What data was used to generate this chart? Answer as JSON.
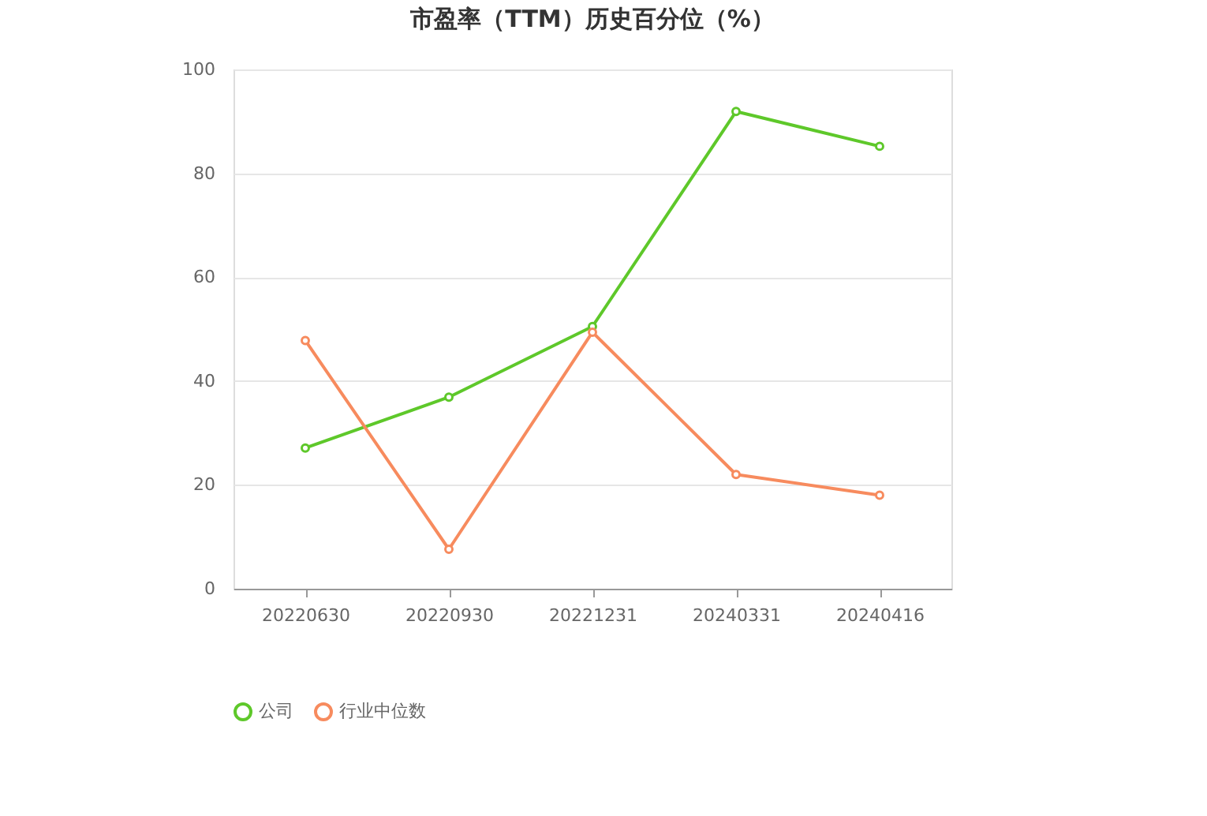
{
  "chart_data": {
    "type": "line",
    "title": "市盈率（TTM）历史百分位（%）",
    "categories": [
      "20220630",
      "20220930",
      "20221231",
      "20240331",
      "20240416"
    ],
    "series": [
      {
        "name": "公司",
        "color": "#5ec82a",
        "values": [
          27.1,
          36.9,
          50.5,
          91.9,
          85.2
        ]
      },
      {
        "name": "行业中位数",
        "color": "#f78b5e",
        "values": [
          47.8,
          7.6,
          49.4,
          22.0,
          18.0
        ]
      }
    ],
    "ylim": [
      0,
      100
    ],
    "yticks": [
      0,
      20,
      40,
      60,
      80,
      100
    ],
    "grid": "y",
    "legend": "bottom",
    "marker": "circle",
    "line_style": "solid"
  }
}
